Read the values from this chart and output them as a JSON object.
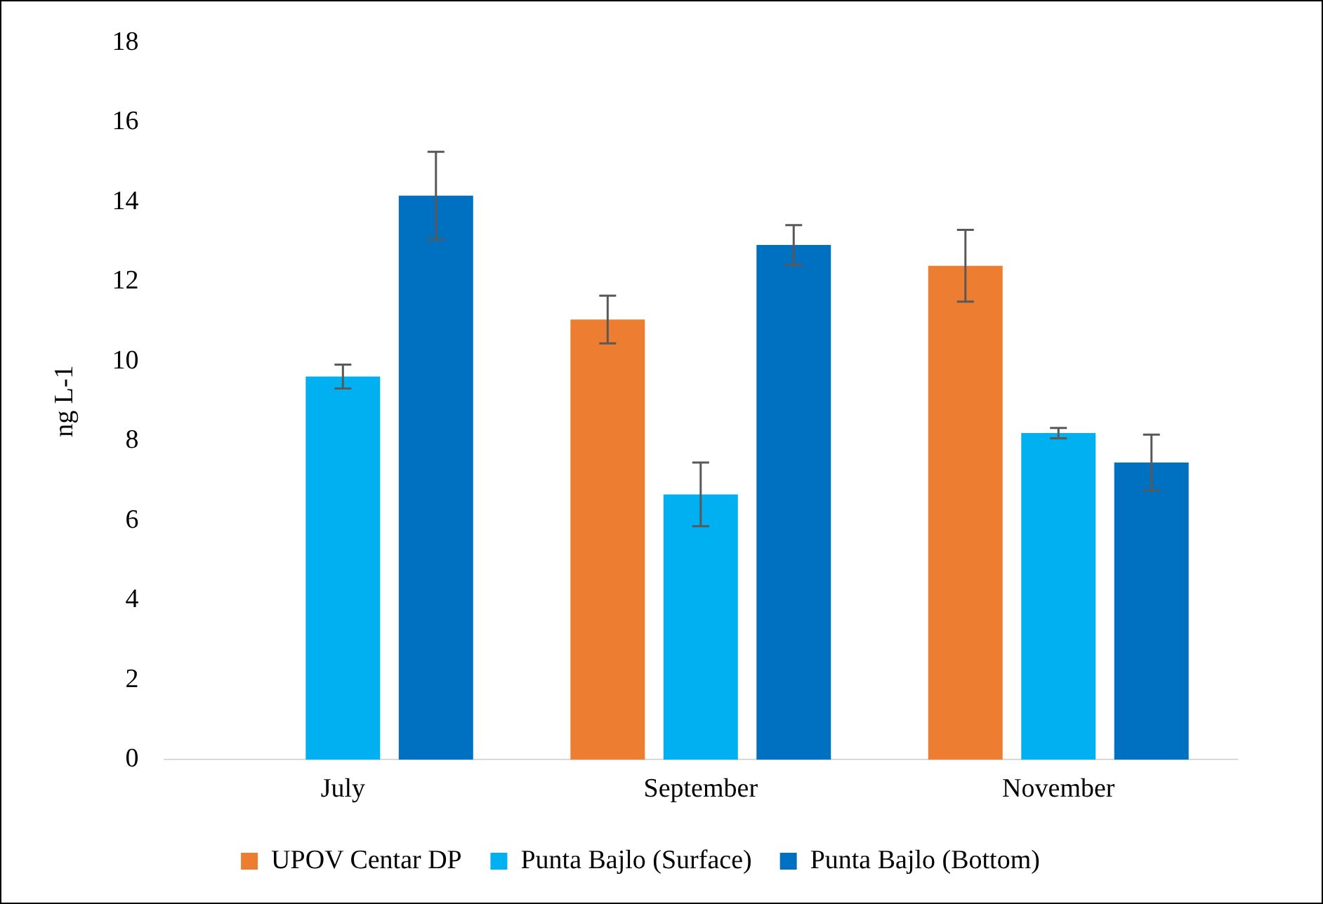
{
  "chart_data": {
    "type": "bar",
    "ylabel": "ng L-1",
    "categories": [
      "July",
      "September",
      "November"
    ],
    "series": [
      {
        "name": "UPOV Centar DP",
        "color": "#ed7d31",
        "values": [
          null,
          11.05,
          12.4
        ],
        "errors": [
          null,
          0.6,
          0.9
        ]
      },
      {
        "name": "Punta Bajlo (Surface)",
        "color": "#00b0f0",
        "values": [
          9.62,
          6.66,
          8.2
        ],
        "errors": [
          0.3,
          0.8,
          0.13
        ]
      },
      {
        "name": "Punta Bajlo (Bottom)",
        "color": "#0070c0",
        "values": [
          14.16,
          12.92,
          7.46
        ],
        "errors": [
          1.1,
          0.5,
          0.7
        ]
      }
    ],
    "ylim": [
      0,
      18
    ],
    "yticks": [
      0,
      2,
      4,
      6,
      8,
      10,
      12,
      14,
      16,
      18
    ],
    "grid": false,
    "legend": "bottom"
  }
}
